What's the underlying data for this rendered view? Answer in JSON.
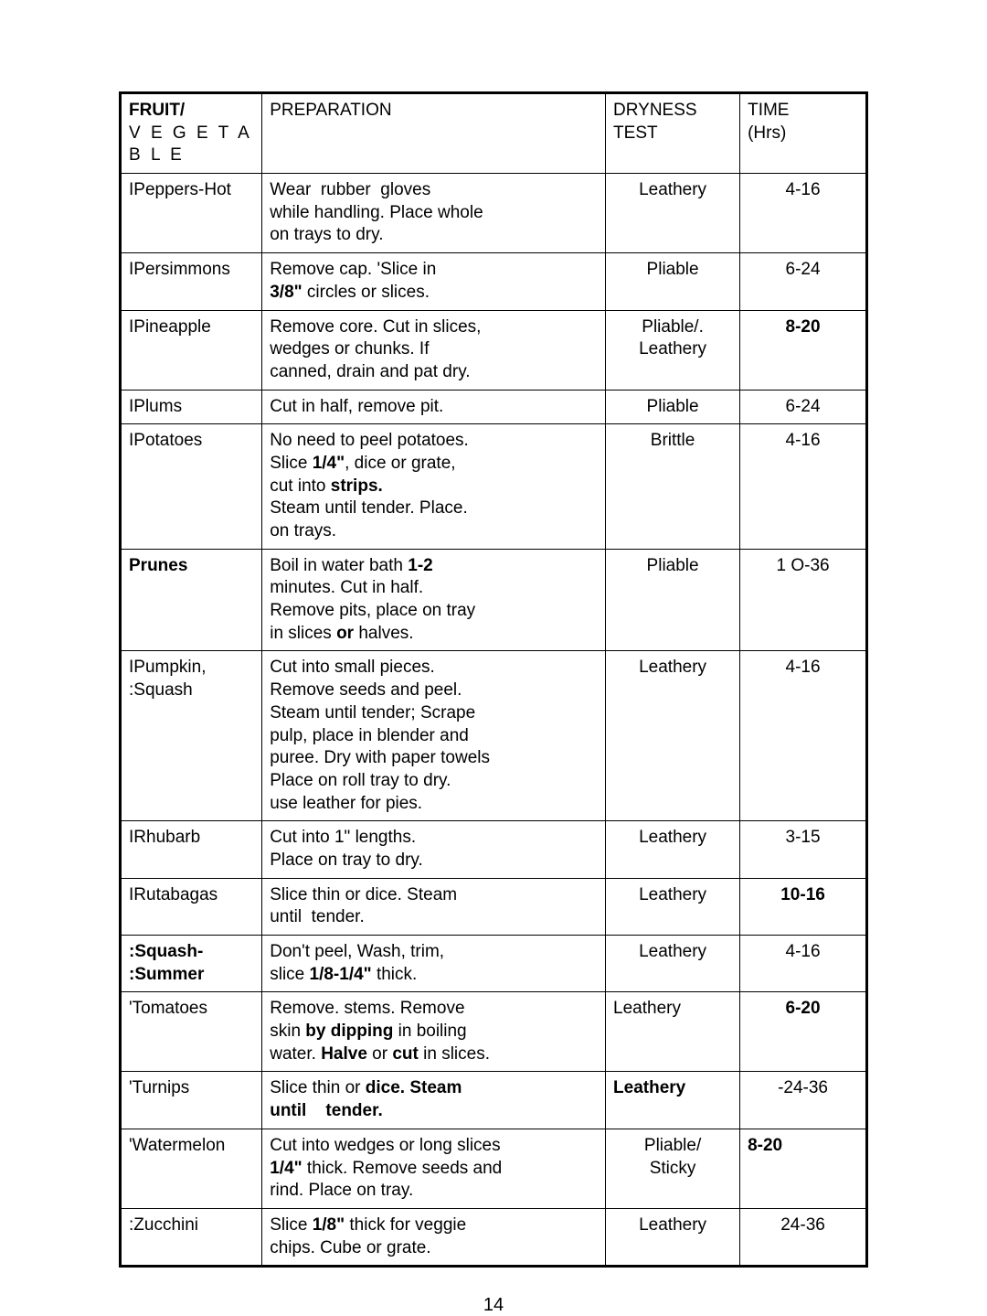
{
  "table": {
    "headers": {
      "fruit1": "FRUIT/",
      "fruit2": "V E G E T A B L E",
      "preparation": "PREPARATION",
      "dryness1": "DRYNESS",
      "dryness2": "TEST",
      "time1": "TIME",
      "time2": "(Hrs)"
    },
    "rows": [
      {
        "fruit": "IPeppers-Hot",
        "prep_html": "Wear&nbsp;&nbsp;rubber&nbsp;&nbsp;gloves<br>while handling. Place whole<br>on trays to dry.",
        "dryness": "Leathery",
        "time": "4-16",
        "time_bold": false
      },
      {
        "fruit": "IPersimmons",
        "prep_html": "Remove cap. 'Slice in<br><span class='bold'>3/8\"</span> circles or slices.",
        "dryness": "Pliable",
        "time": "6-24",
        "time_bold": false
      },
      {
        "fruit": "IPineapple",
        "prep_html": "Remove core. Cut in slices,<br>wedges or chunks. If<br>canned, drain and pat dry.",
        "dryness": "Pliable/.<br>Leathery",
        "time": "8-20",
        "time_bold": true
      },
      {
        "fruit": "IPlums",
        "prep_html": "Cut in half, remove pit.",
        "dryness": "Pliable",
        "time": "6-24",
        "time_bold": false
      },
      {
        "fruit": "IPotatoes",
        "prep_html": "No need to peel potatoes.<br>Slice <span class='bold'>1/4\"</span>, dice or grate,<br>cut into <span class='bold'>strips.</span><br>Steam until tender. Place.<br>on trays.",
        "dryness": "Brittle",
        "time": "4-16",
        "time_bold": false
      },
      {
        "fruit": "Prunes",
        "prep_html": "Boil in water bath <span class='bold'>1-2</span><br>minutes. Cut in half.<br>Remove pits, place on tray<br>in slices <span class='bold'>or</span> halves.",
        "dryness": "Pliable",
        "time": "1 O-36",
        "time_bold": false,
        "fruit_bold": true
      },
      {
        "fruit": "IPumpkin,<br>:Squash",
        "prep_html": "Cut into small pieces.<br>Remove seeds and peel.<br>Steam until tender; Scrape<br>pulp, place in blender and<br>puree. Dry with paper towels<br>Place on roll tray to dry.<br>use leather for pies.",
        "dryness": "Leathery",
        "time": "4-16",
        "time_bold": false
      },
      {
        "fruit": "IRhubarb",
        "prep_html": "Cut into 1\" lengths.<br>Place on tray to dry.",
        "dryness": "Leathery",
        "time": "3-15",
        "time_bold": false
      },
      {
        "fruit": "IRutabagas",
        "prep_html": "Slice thin or dice. Steam<br>until&nbsp;&nbsp;tender.",
        "dryness": "Leathery",
        "time": "10-16",
        "time_bold": true
      },
      {
        "fruit": ":Squash-<br>:Summer",
        "prep_html": "Don't peel, Wash, trim,<br>slice <span class='bold'>1/8-1/4\"</span> thick.",
        "dryness": "Leathery",
        "time": "4-16",
        "time_bold": false,
        "fruit_bold": true
      },
      {
        "fruit": "'Tomatoes",
        "prep_html": "Remove. stems. Remove<br>skin <span class='bold'>by dipping</span> in boiling<br>water. <span class='bold'>Halve</span> or <span class='bold'>cut</span> in slices.",
        "dryness": "Leathery",
        "time": "6-20",
        "time_bold": true,
        "dryness_left": true
      },
      {
        "fruit": "'Turnips",
        "prep_html": "Slice thin or <span class='bold'>dice. Steam</span><br><span class='bold'>until&nbsp;&nbsp;&nbsp;&nbsp;tender.</span>",
        "dryness": "Leathery",
        "time": "-24-36",
        "time_bold": false,
        "dryness_bold": true,
        "dryness_left": true
      },
      {
        "fruit": "'Watermelon",
        "prep_html": "Cut into wedges or long slices<br><span class='bold'>1/4\"</span> thick. Remove seeds and<br>rind. Place on tray.",
        "dryness": "Pliable/<br>Sticky",
        "time": "8-20",
        "time_bold": true,
        "time_left": true
      },
      {
        "fruit": ":Zucchini",
        "prep_html": "Slice <span class='bold'>1/8\"</span> thick for veggie<br>chips. Cube or grate.",
        "dryness": "Leathery",
        "time": "24-36",
        "time_bold": false
      }
    ]
  },
  "page_number": "14"
}
